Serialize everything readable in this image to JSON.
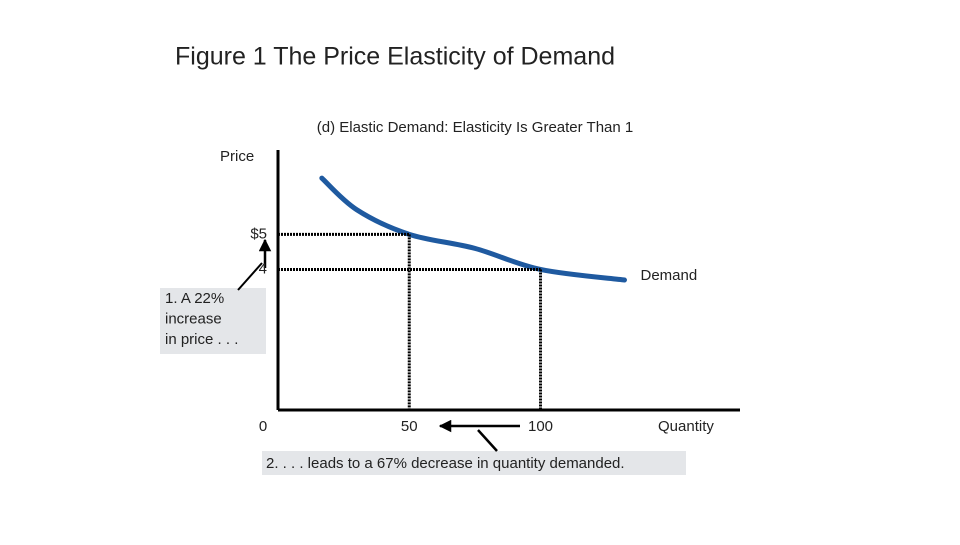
{
  "chart_data": {
    "type": "line",
    "title": "Figure 1 The Price Elasticity of Demand",
    "subtitle": "(d) Elastic Demand: Elasticity Is Greater Than 1",
    "y_label": "Price",
    "x_label": "Quantity",
    "xlim": [
      0,
      176
    ],
    "ylim": [
      0,
      7.4
    ],
    "xticks": [
      0,
      50,
      100
    ],
    "yticks": [
      {
        "value": 5,
        "label": "$5"
      },
      4
    ],
    "series": [
      {
        "name": "Demand",
        "color": "#1f5aa0",
        "x": [
          16.7,
          30,
          50,
          75,
          100,
          132
        ],
        "values": [
          6.6,
          5.7,
          5,
          4.6,
          4,
          3.7
        ]
      }
    ],
    "annotations": [
      {
        "lines": [
          "1. A 22%",
          "increase",
          "in price . . ."
        ]
      },
      {
        "lines": [
          "2. . . . leads to a 67% decrease in quantity demanded."
        ]
      }
    ]
  }
}
